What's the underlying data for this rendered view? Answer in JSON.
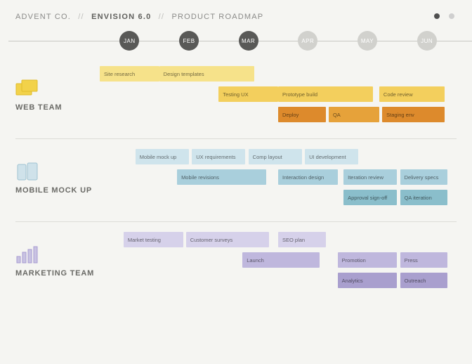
{
  "header": {
    "company": "ADVENT CO.",
    "product": "ENVISION 6.0",
    "section": "PRODUCT ROADMAP",
    "sep": "//",
    "legend1": "",
    "legend2": ""
  },
  "timeline": {
    "months": [
      "JAN",
      "FEB",
      "MAR",
      "APR",
      "MAY",
      "JUN"
    ],
    "col_width_pct": 16.6667,
    "start_offset_pct": 0,
    "active_count": 3
  },
  "lanes": [
    {
      "id": "web",
      "title": "WEB TEAM",
      "colors": {
        "light": "#f6e28a",
        "mid": "#f3cf5d",
        "dark": "#e6a23a",
        "darker": "#dd8a2c"
      },
      "rows": [
        [
          {
            "label": "Site research",
            "start": 0,
            "span": 1,
            "shade": "light"
          },
          {
            "label": "Design templates",
            "start": 1,
            "span": 1.6,
            "shade": "light"
          }
        ],
        [
          {
            "label": "Testing UX",
            "start": 2,
            "span": 1,
            "shade": "mid"
          },
          {
            "label": "Prototype build",
            "start": 3,
            "span": 1.6,
            "shade": "mid"
          },
          {
            "label": "Code review",
            "start": 4.7,
            "span": 1.1,
            "shade": "mid"
          }
        ],
        [
          {
            "label": "Deploy",
            "start": 3,
            "span": 0.8,
            "shade": "darker"
          },
          {
            "label": "QA",
            "start": 3.85,
            "span": 0.85,
            "shade": "dark"
          },
          {
            "label": "Staging env",
            "start": 4.75,
            "span": 1.05,
            "shade": "darker"
          }
        ]
      ]
    },
    {
      "id": "mobile",
      "title": "MOBILE MOCK UP",
      "colors": {
        "light": "#cfe4ec",
        "mid": "#a9cfdc",
        "dark": "#8abecb",
        "darker": "#79b2c1"
      },
      "rows": [
        [
          {
            "label": "Mobile mock up",
            "start": 0.6,
            "span": 0.9,
            "shade": "light"
          },
          {
            "label": "UX requirements",
            "start": 1.55,
            "span": 0.9,
            "shade": "light"
          },
          {
            "label": "Comp layout",
            "start": 2.5,
            "span": 0.9,
            "shade": "light"
          },
          {
            "label": "UI development",
            "start": 3.45,
            "span": 0.9,
            "shade": "light"
          }
        ],
        [
          {
            "label": "Mobile revisions",
            "start": 1.3,
            "span": 1.5,
            "shade": "mid"
          },
          {
            "label": "Interaction design",
            "start": 3.0,
            "span": 1.0,
            "shade": "mid"
          },
          {
            "label": "Iteration review",
            "start": 4.1,
            "span": 0.9,
            "shade": "mid"
          },
          {
            "label": "Delivery specs",
            "start": 5.05,
            "span": 0.8,
            "shade": "mid"
          }
        ],
        [
          {
            "label": "Approval sign-off",
            "start": 4.1,
            "span": 0.9,
            "shade": "dark"
          },
          {
            "label": "QA iteration",
            "start": 5.05,
            "span": 0.8,
            "shade": "dark"
          }
        ]
      ]
    },
    {
      "id": "marketing",
      "title": "MARKETING TEAM",
      "colors": {
        "light": "#d6d1ea",
        "mid": "#bfb7dd",
        "dark": "#a99fce",
        "darker": "#978abf"
      },
      "rows": [
        [
          {
            "label": "Market testing",
            "start": 0.4,
            "span": 1.0,
            "shade": "light"
          },
          {
            "label": "Customer surveys",
            "start": 1.45,
            "span": 1.4,
            "shade": "light"
          },
          {
            "label": "SEO plan",
            "start": 3.0,
            "span": 0.8,
            "shade": "light"
          }
        ],
        [
          {
            "label": "Launch",
            "start": 2.4,
            "span": 1.3,
            "shade": "mid"
          },
          {
            "label": "Promotion",
            "start": 4.0,
            "span": 1.0,
            "shade": "mid"
          },
          {
            "label": "Press",
            "start": 5.05,
            "span": 0.8,
            "shade": "mid"
          }
        ],
        [
          {
            "label": "Analytics",
            "start": 4.0,
            "span": 1.0,
            "shade": "dark"
          },
          {
            "label": "Outreach",
            "start": 5.05,
            "span": 0.8,
            "shade": "dark"
          }
        ]
      ]
    }
  ],
  "style": {
    "background": "#f5f5f2",
    "tick_active_bg": "#595957",
    "tick_fade_bg": "#d1d1cd",
    "lane_border": "#dcdcd7"
  }
}
